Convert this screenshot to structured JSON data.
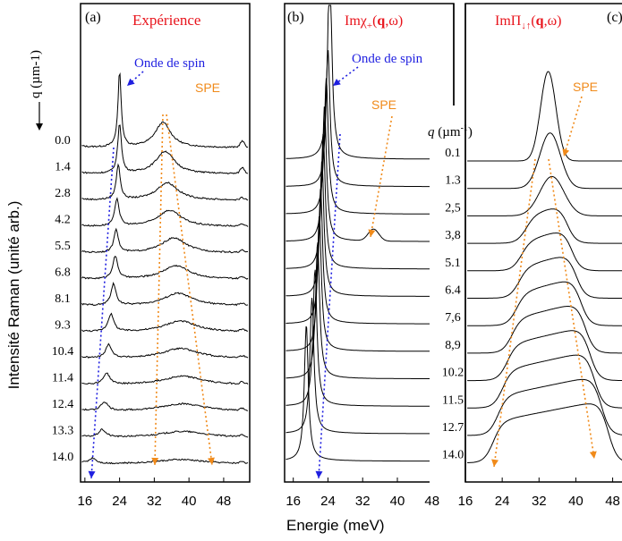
{
  "figure": {
    "ylabel": "Intensité Raman (unité arb.)",
    "xlabel": "Energie (meV)",
    "colors": {
      "axis": "#000000",
      "title": "#e8141c",
      "spin": "#1f1fe0",
      "spe": "#f08a1a"
    }
  },
  "chart_data": [
    {
      "type": "line",
      "panel": "(a)",
      "title": "Expérience",
      "q_axis_label": "q (µm-1)",
      "q_values": [
        "0.0",
        "1.4",
        "2.8",
        "4.2",
        "5.5",
        "6.8",
        "8.1",
        "9.3",
        "10.4",
        "11.4",
        "12.4",
        "13.3",
        "14.0"
      ],
      "x_ticks": [
        "16",
        "24",
        "32",
        "40",
        "48"
      ],
      "xlim": [
        15,
        54
      ],
      "annotations": [
        "Onde de spin",
        "SPE"
      ],
      "series": [
        {
          "q": 0.0,
          "peaks": [
            {
              "e": 24.0,
              "a": 3.0,
              "w": 0.45
            },
            {
              "e": 34.0,
              "a": 1.0,
              "w": 2.2
            }
          ]
        },
        {
          "q": 1.4,
          "peaks": [
            {
              "e": 24.0,
              "a": 2.0,
              "w": 0.5
            },
            {
              "e": 34.5,
              "a": 0.9,
              "w": 2.6
            }
          ]
        },
        {
          "q": 2.8,
          "peaks": [
            {
              "e": 23.7,
              "a": 1.4,
              "w": 0.55
            },
            {
              "e": 35.0,
              "a": 0.7,
              "w": 3.0
            }
          ]
        },
        {
          "q": 4.2,
          "peaks": [
            {
              "e": 23.4,
              "a": 1.1,
              "w": 0.6
            },
            {
              "e": 35.5,
              "a": 0.65,
              "w": 3.3
            }
          ]
        },
        {
          "q": 5.5,
          "peaks": [
            {
              "e": 23.2,
              "a": 0.95,
              "w": 0.6
            },
            {
              "e": 36.5,
              "a": 0.6,
              "w": 3.5
            }
          ]
        },
        {
          "q": 6.8,
          "peaks": [
            {
              "e": 23.0,
              "a": 0.9,
              "w": 0.7
            },
            {
              "e": 37.0,
              "a": 0.55,
              "w": 3.8
            }
          ]
        },
        {
          "q": 8.1,
          "peaks": [
            {
              "e": 22.6,
              "a": 0.85,
              "w": 0.7
            },
            {
              "e": 37.5,
              "a": 0.5,
              "w": 4.0
            }
          ]
        },
        {
          "q": 9.3,
          "peaks": [
            {
              "e": 22.0,
              "a": 0.7,
              "w": 0.8
            },
            {
              "e": 38.0,
              "a": 0.45,
              "w": 4.5
            }
          ]
        },
        {
          "q": 10.4,
          "peaks": [
            {
              "e": 21.5,
              "a": 0.55,
              "w": 0.8
            },
            {
              "e": 38.0,
              "a": 0.4,
              "w": 5.0
            }
          ]
        },
        {
          "q": 11.4,
          "peaks": [
            {
              "e": 21.0,
              "a": 0.45,
              "w": 0.9
            },
            {
              "e": 38.5,
              "a": 0.35,
              "w": 5.5
            }
          ]
        },
        {
          "q": 12.4,
          "peaks": [
            {
              "e": 20.5,
              "a": 0.35,
              "w": 1.0
            },
            {
              "e": 38.5,
              "a": 0.3,
              "w": 6.0
            }
          ]
        },
        {
          "q": 13.3,
          "peaks": [
            {
              "e": 20.0,
              "a": 0.3,
              "w": 1.0
            },
            {
              "e": 38.5,
              "a": 0.25,
              "w": 6.5
            }
          ]
        },
        {
          "q": 14.0,
          "peaks": [
            {
              "e": 17.8,
              "a": 0.22,
              "w": 1.0
            },
            {
              "e": 38.0,
              "a": 0.18,
              "w": 7.0
            }
          ]
        }
      ]
    },
    {
      "type": "line",
      "panel": "(b)",
      "title": "Imχ+(q,ω)",
      "q_axis_label": "q (µm-1)",
      "x_ticks": [
        "16",
        "24",
        "32",
        "40",
        "48"
      ],
      "xlim": [
        14,
        53
      ],
      "annotations": [
        "Onde de spin",
        "SPE"
      ],
      "series": [
        {
          "q": 0.1,
          "spin": 24.4
        },
        {
          "q": 1.3,
          "spin": 24.0
        },
        {
          "q": 2.5,
          "spin": 23.6
        },
        {
          "q": 3.8,
          "spin": 23.2,
          "spe": 34.5
        },
        {
          "q": 5.1,
          "spin": 22.9
        },
        {
          "q": 6.4,
          "spin": 22.6
        },
        {
          "q": 7.6,
          "spin": 22.3
        },
        {
          "q": 8.9,
          "spin": 22.0
        },
        {
          "q": 10.2,
          "spin": 21.6
        },
        {
          "q": 11.5,
          "spin": 21.0
        },
        {
          "q": 12.7,
          "spin": 20.3
        },
        {
          "q": 14.0,
          "spin": 19.0
        }
      ]
    },
    {
      "type": "line",
      "panel": "(c)",
      "title": "ImΠ↓↑(q,ω)",
      "q_axis_label": "q (µm-1)",
      "q_values": [
        "0.1",
        "1.3",
        "2,5",
        "3,8",
        "5.1",
        "6.4",
        "7,6",
        "8,9",
        "10.2",
        "11.5",
        "12.7",
        "14.0"
      ],
      "x_ticks": [
        "16",
        "24",
        "32",
        "40",
        "48"
      ],
      "xlim": [
        16,
        51
      ],
      "annotations": [
        "SPE"
      ],
      "series": [
        {
          "q": 0.1,
          "lo": 31.0,
          "hi": 36.0
        },
        {
          "q": 1.3,
          "lo": 30.5,
          "hi": 36.5
        },
        {
          "q": 2.5,
          "lo": 30.0,
          "hi": 37.0
        },
        {
          "q": 3.8,
          "lo": 29.0,
          "hi": 38.0
        },
        {
          "q": 5.1,
          "lo": 28.0,
          "hi": 39.0
        },
        {
          "q": 6.4,
          "lo": 27.5,
          "hi": 40.0
        },
        {
          "q": 7.6,
          "lo": 27.0,
          "hi": 41.0
        },
        {
          "q": 8.9,
          "lo": 26.0,
          "hi": 42.0
        },
        {
          "q": 10.2,
          "lo": 25.0,
          "hi": 43.0
        },
        {
          "q": 11.5,
          "lo": 24.0,
          "hi": 44.0
        },
        {
          "q": 12.7,
          "lo": 23.0,
          "hi": 45.5
        },
        {
          "q": 14.0,
          "lo": 22.0,
          "hi": 47.0
        }
      ]
    }
  ]
}
